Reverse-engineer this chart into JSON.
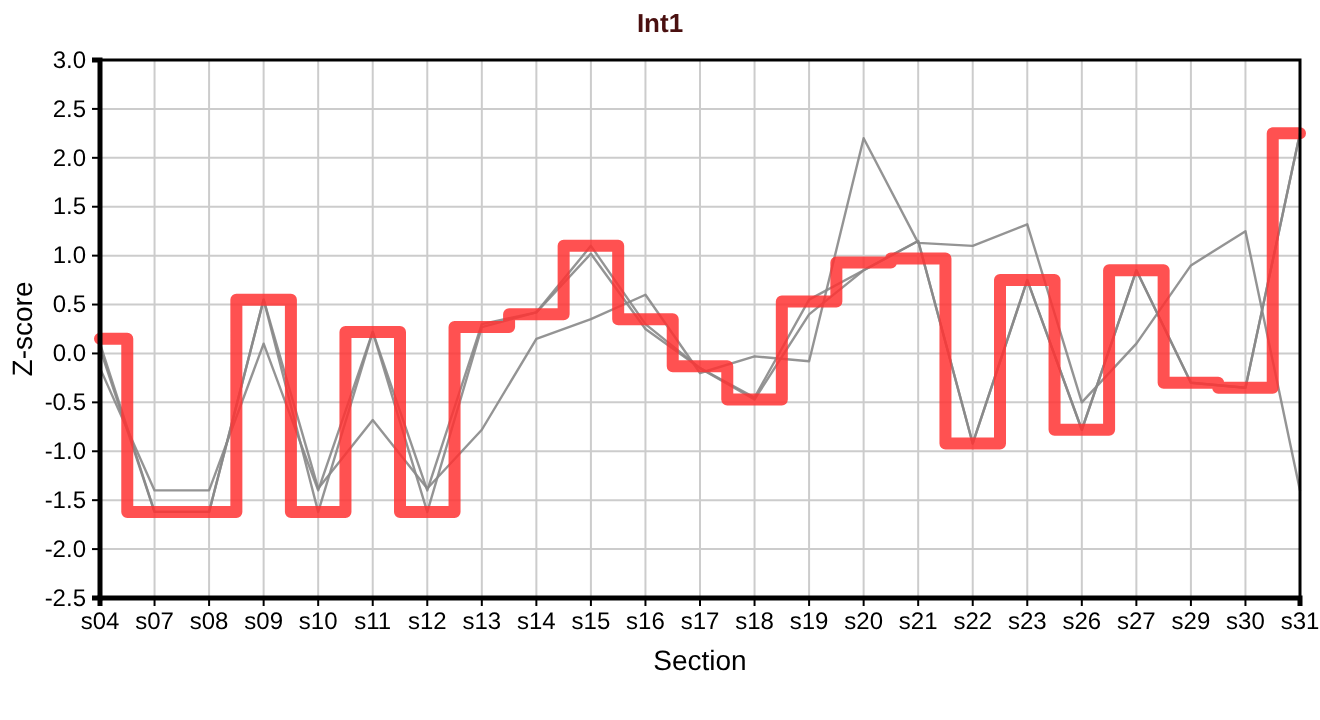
{
  "chart_data": {
    "type": "line",
    "title": "Int1",
    "xlabel": "Section",
    "ylabel": "Z-score",
    "categories": [
      "s04",
      "s07",
      "s08",
      "s09",
      "s10",
      "s11",
      "s12",
      "s13",
      "s14",
      "s15",
      "s16",
      "s17",
      "s18",
      "s19",
      "s20",
      "s21",
      "s22",
      "s23",
      "s26",
      "s27",
      "s29",
      "s30",
      "s31"
    ],
    "series": [
      {
        "color": "#888888",
        "values": [
          0.05,
          -1.62,
          -1.62,
          0.55,
          -1.38,
          -0.68,
          -1.38,
          -0.78,
          0.15,
          0.35,
          0.6,
          -0.2,
          -0.03,
          -0.08,
          2.2,
          1.13,
          1.1,
          1.32,
          -0.5,
          0.1,
          0.9,
          1.25,
          -1.4
        ]
      },
      {
        "color": "#888888",
        "values": [
          -0.15,
          -1.4,
          -1.4,
          0.1,
          -1.4,
          0.22,
          -1.4,
          0.3,
          0.42,
          1.02,
          0.25,
          -0.15,
          -0.45,
          0.55,
          0.85,
          1.15,
          -0.92,
          0.75,
          -0.78,
          0.85,
          -0.3,
          -0.35,
          2.25
        ]
      },
      {
        "color": "#888888",
        "values": [
          0.1,
          -1.62,
          -1.62,
          0.55,
          -1.62,
          0.22,
          -1.62,
          0.27,
          0.42,
          1.1,
          0.3,
          -0.15,
          -0.47,
          0.4,
          0.85,
          1.15,
          -0.92,
          0.75,
          -0.78,
          0.85,
          -0.3,
          -0.35,
          2.25
        ]
      },
      {
        "type": "step",
        "color": "#ff3333",
        "values": [
          0.15,
          -1.62,
          -1.62,
          0.55,
          -1.62,
          0.22,
          -1.62,
          0.27,
          0.4,
          1.1,
          0.35,
          -0.13,
          -0.47,
          0.53,
          0.93,
          0.97,
          -0.92,
          0.75,
          -0.78,
          0.85,
          -0.3,
          -0.35,
          2.25
        ]
      }
    ],
    "ylim": [
      -2.5,
      3
    ],
    "yticks": [
      {
        "value": -2.5,
        "label": "-2.5"
      },
      {
        "value": -2,
        "label": "-2.0"
      },
      {
        "value": -1.5,
        "label": "-1.5"
      },
      {
        "value": -1,
        "label": "-1.0"
      },
      {
        "value": -0.5,
        "label": "-0.5"
      },
      {
        "value": 0,
        "label": "0.0"
      },
      {
        "value": 0.5,
        "label": "0.5"
      },
      {
        "value": 1,
        "label": "1.0"
      },
      {
        "value": 1.5,
        "label": "1.5"
      },
      {
        "value": 2,
        "label": "2.0"
      },
      {
        "value": 2.5,
        "label": "2.5"
      },
      {
        "value": 3,
        "label": "3.0"
      }
    ],
    "grid": true,
    "marker": "none",
    "line_style": "solid"
  }
}
